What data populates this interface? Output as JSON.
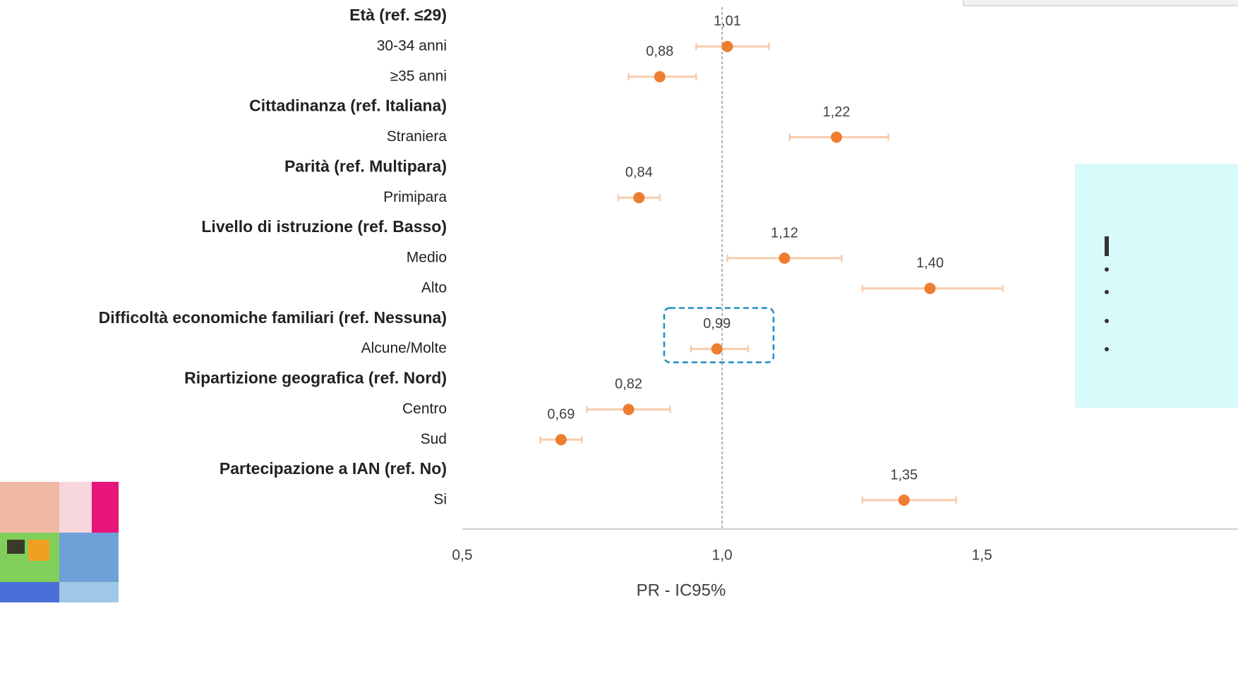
{
  "chart_data": {
    "type": "forest",
    "categories": [
      "Età (ref. ≤29)",
      "30-34 anni",
      "≥35 anni",
      "Cittadinanza (ref. Italiana)",
      "Straniera",
      "Parità (ref. Multipara)",
      "Primipara",
      "Livello di istruzione (ref. Basso)",
      "Medio",
      "Alto",
      "Difficoltà economiche familiari (ref. Nessuna)",
      "Alcune/Molte",
      "Ripartizione geografica (ref. Nord)",
      "Centro",
      "Sud",
      "Partecipazione a IAN (ref. No)",
      "Si"
    ],
    "series": [
      {
        "color": "#ed7d31",
        "error_color": "#f8cbad",
        "values": [
          null,
          1.01,
          0.88,
          null,
          1.22,
          null,
          0.84,
          null,
          1.12,
          1.4,
          null,
          0.99,
          null,
          0.82,
          0.69,
          null,
          1.35
        ],
        "value_labels": [
          null,
          "1,01",
          "0,88",
          null,
          "1,22",
          null,
          "0,84",
          null,
          "1,12",
          "1,40",
          null,
          "0,99",
          null,
          "0,82",
          "0,69",
          null,
          "1,35"
        ],
        "lower": [
          null,
          0.95,
          0.82,
          null,
          1.13,
          null,
          0.8,
          null,
          1.01,
          1.27,
          null,
          0.94,
          null,
          0.74,
          0.65,
          null,
          1.27
        ],
        "upper": [
          null,
          1.09,
          0.95,
          null,
          1.32,
          null,
          0.88,
          null,
          1.23,
          1.54,
          null,
          1.05,
          null,
          0.9,
          0.73,
          null,
          1.45
        ]
      }
    ],
    "xlabel": "PR - IC95%",
    "xlim": [
      0.5,
      1.99
    ],
    "xticks": [
      {
        "value": 0.5,
        "label": "0,5"
      },
      {
        "value": 1.0,
        "label": "1,0"
      },
      {
        "value": 1.5,
        "label": "1,5"
      }
    ],
    "reference_line": 1,
    "highlight": [
      11
    ]
  }
}
